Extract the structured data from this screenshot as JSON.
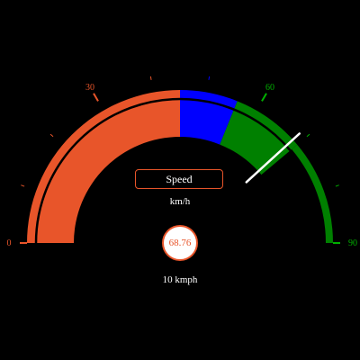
{
  "gauge": {
    "title": "Speed",
    "unit": "km/h",
    "value_text": "68.76",
    "footer": "10 kmph",
    "min": 0,
    "max": 90,
    "needle_value": 68.76,
    "major_ticks": [
      {
        "value": 0,
        "label": "0",
        "color": "#E8552A"
      },
      {
        "value": 30,
        "label": "30",
        "color": "#E8552A"
      },
      {
        "value": 60,
        "label": "60",
        "color": "#00B000"
      },
      {
        "value": 90,
        "label": "90",
        "color": "#00B000"
      }
    ],
    "minor_tick_values": [
      10,
      20,
      40,
      50,
      70,
      80
    ],
    "bands": [
      {
        "from": 0,
        "to": 45,
        "color": "#E8552A"
      },
      {
        "from": 45,
        "to": 56,
        "color": "#0000FF"
      },
      {
        "from": 56,
        "to": 90,
        "color": "#008000"
      }
    ],
    "fill_band_max": 70,
    "colors": {
      "primary": "#E8552A",
      "blue": "#0000FF",
      "green": "#008000",
      "tick_green": "#00B000",
      "background": "#000000",
      "needle": "#FFFFFF"
    }
  }
}
